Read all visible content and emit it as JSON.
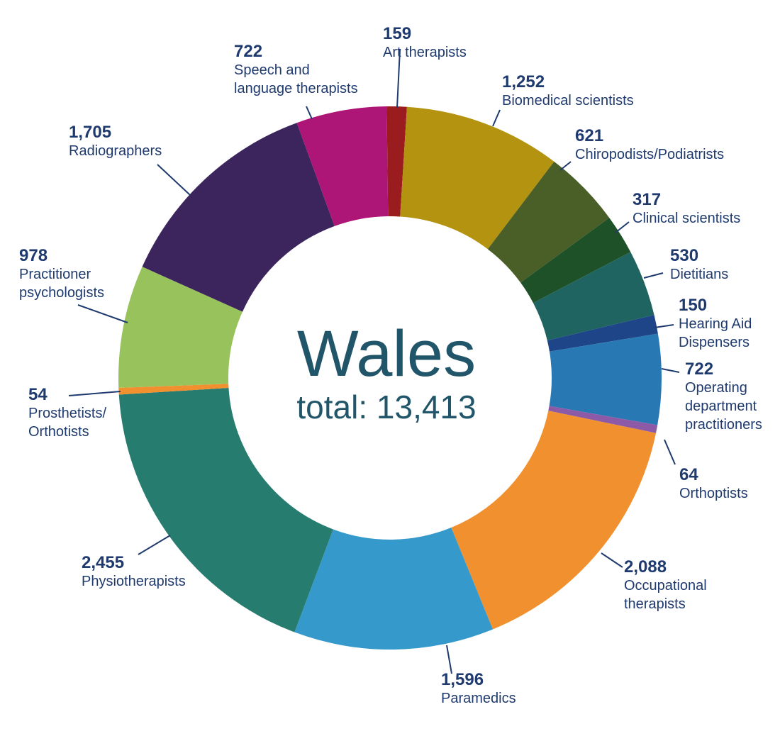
{
  "chart_data": {
    "type": "pie",
    "title": "Wales",
    "subtitle": "total: 13,413",
    "slices": [
      {
        "name": [
          "Art therapists"
        ],
        "value_label": "159",
        "value": 159,
        "color": "#9b1c1f"
      },
      {
        "name": [
          "Biomedical scientists"
        ],
        "value_label": "1,252",
        "value": 1252,
        "color": "#b3930f"
      },
      {
        "name": [
          "Chiropodists/Podiatrists"
        ],
        "value_label": "621",
        "value": 621,
        "color": "#4a5e28"
      },
      {
        "name": [
          "Clinical scientists"
        ],
        "value_label": "317",
        "value": 317,
        "color": "#1f5128"
      },
      {
        "name": [
          "Dietitians"
        ],
        "value_label": "530",
        "value": 530,
        "color": "#1f6460"
      },
      {
        "name": [
          "Hearing Aid",
          "Dispensers"
        ],
        "value_label": "150",
        "value": 150,
        "color": "#1d4588"
      },
      {
        "name": [
          "Operating",
          "department",
          "practitioners"
        ],
        "value_label": "722",
        "value": 722,
        "color": "#2879b3"
      },
      {
        "name": [
          "Orthoptists"
        ],
        "value_label": "64",
        "value": 64,
        "color": "#8c5aa6"
      },
      {
        "name": [
          "Occupational",
          "therapists"
        ],
        "value_label": "2,088",
        "value": 2088,
        "color": "#f0902e"
      },
      {
        "name": [
          "Paramedics"
        ],
        "value_label": "1,596",
        "value": 1596,
        "color": "#3599cb"
      },
      {
        "name": [
          "Physiotherapists"
        ],
        "value_label": "2,455",
        "value": 2455,
        "color": "#267c6f"
      },
      {
        "name": [
          "Prosthetists/",
          "Orthotists"
        ],
        "value_label": "54",
        "value": 54,
        "color": "#f0902e"
      },
      {
        "name": [
          "Practitioner",
          "psychologists"
        ],
        "value_label": "978",
        "value": 978,
        "color": "#98c25c"
      },
      {
        "name": [
          "Radiographers"
        ],
        "value_label": "1,705",
        "value": 1705,
        "color": "#3c245c"
      },
      {
        "name": [
          "Speech and",
          "language therapists"
        ],
        "value_label": "722",
        "value": 722,
        "color": "#ad1577"
      }
    ]
  }
}
